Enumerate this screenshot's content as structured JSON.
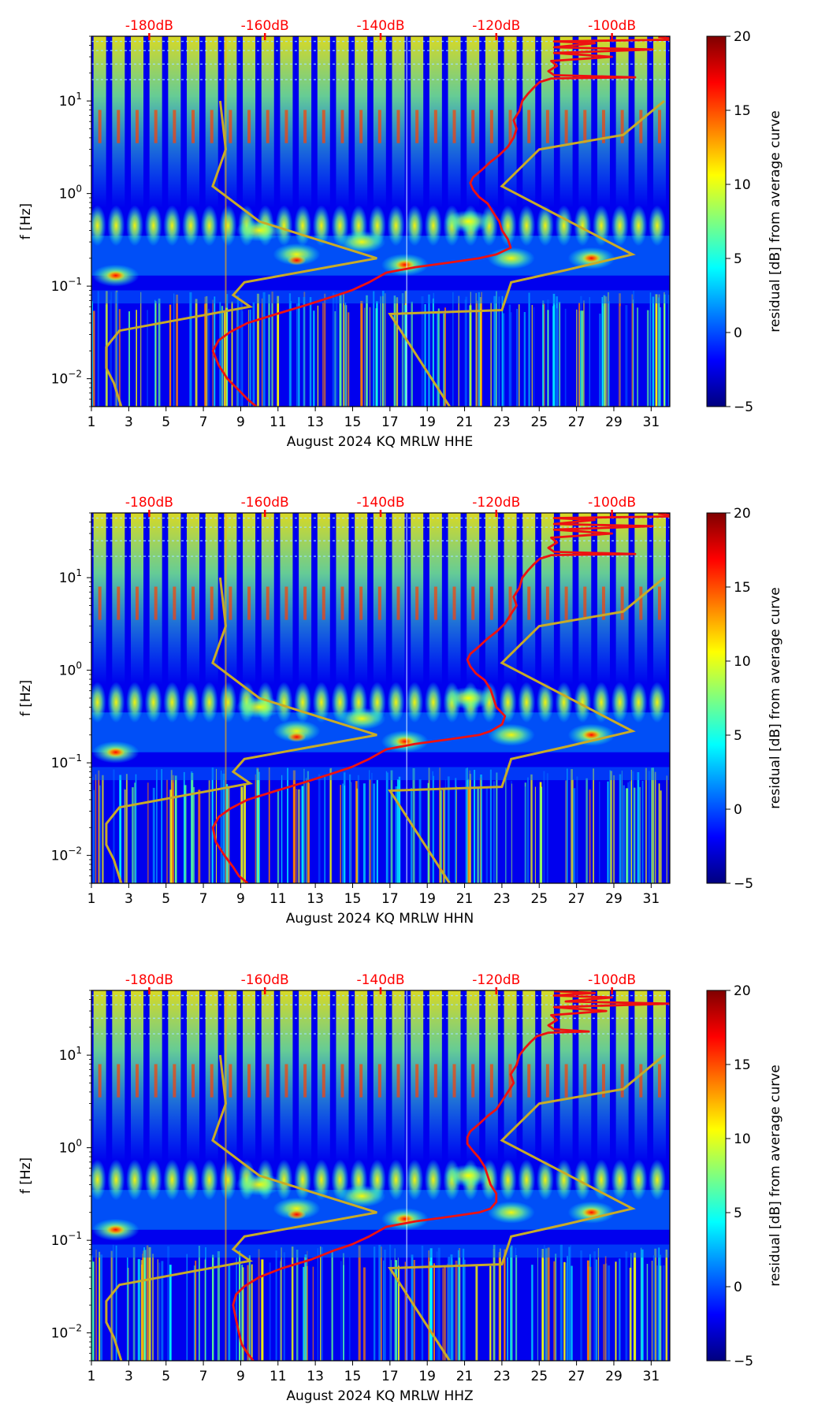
{
  "colormap": [
    "#00007f",
    "#0000ff",
    "#007fff",
    "#00ffff",
    "#7fff7f",
    "#ffff00",
    "#ff7f00",
    "#ff0000",
    "#7f0000"
  ],
  "line_colors": {
    "psd_curve": "#ee1111",
    "noise_model": "#c8ab28",
    "top_labels": "#ff0000"
  },
  "colorbar": {
    "label": "residual [dB] from average curve",
    "range": [
      -5,
      20
    ],
    "ticks": [
      {
        "value": -5,
        "label": "−5"
      },
      {
        "value": 0,
        "label": "0"
      },
      {
        "value": 5,
        "label": "5"
      },
      {
        "value": 10,
        "label": "10"
      },
      {
        "value": 15,
        "label": "15"
      },
      {
        "value": 20,
        "label": "20"
      }
    ]
  },
  "chart_data": [
    {
      "type": "heatmap",
      "title": "",
      "xlabel": "August 2024 KQ MRLW  HHE",
      "ylabel": "f [Hz]",
      "xlim": [
        1,
        32
      ],
      "ylim": [
        0.005,
        50
      ],
      "yscale": "log",
      "xticks": [
        1,
        3,
        5,
        7,
        9,
        11,
        13,
        15,
        17,
        19,
        21,
        23,
        25,
        27,
        29,
        31
      ],
      "yticks": [
        {
          "value": 0.01,
          "base": "10",
          "exp": "−2"
        },
        {
          "value": 0.1,
          "base": "10",
          "exp": "−1"
        },
        {
          "value": 1,
          "base": "10",
          "exp": "0"
        },
        {
          "value": 10,
          "base": "10",
          "exp": "1"
        }
      ],
      "top_axis": {
        "range_db": [
          -190,
          -90
        ],
        "ticks": [
          {
            "value": -180,
            "label": "-180dB"
          },
          {
            "value": -160,
            "label": "-160dB"
          },
          {
            "value": -140,
            "label": "-140dB"
          },
          {
            "value": -120,
            "label": "-120dB"
          },
          {
            "value": -100,
            "label": "-100dB"
          }
        ]
      },
      "psd_curve": [
        {
          "db": -161.5,
          "f": 0.005
        },
        {
          "db": -163,
          "f": 0.006
        },
        {
          "db": -164.5,
          "f": 0.0075
        },
        {
          "db": -166.5,
          "f": 0.01
        },
        {
          "db": -168,
          "f": 0.014
        },
        {
          "db": -169,
          "f": 0.02
        },
        {
          "db": -168,
          "f": 0.026
        },
        {
          "db": -166,
          "f": 0.032
        },
        {
          "db": -163,
          "f": 0.04
        },
        {
          "db": -158,
          "f": 0.05
        },
        {
          "db": -153,
          "f": 0.062
        },
        {
          "db": -148,
          "f": 0.078
        },
        {
          "db": -145,
          "f": 0.09
        },
        {
          "db": -142,
          "f": 0.11
        },
        {
          "db": -139,
          "f": 0.14
        },
        {
          "db": -134,
          "f": 0.16
        },
        {
          "db": -128,
          "f": 0.18
        },
        {
          "db": -123,
          "f": 0.2
        },
        {
          "db": -120,
          "f": 0.22
        },
        {
          "db": -117.5,
          "f": 0.26
        },
        {
          "db": -118,
          "f": 0.32
        },
        {
          "db": -119,
          "f": 0.4
        },
        {
          "db": -119.5,
          "f": 0.5
        },
        {
          "db": -120.5,
          "f": 0.62
        },
        {
          "db": -121.5,
          "f": 0.78
        },
        {
          "db": -123,
          "f": 0.92
        },
        {
          "db": -124,
          "f": 1.1
        },
        {
          "db": -124.5,
          "f": 1.3
        },
        {
          "db": -124,
          "f": 1.5
        },
        {
          "db": -122.5,
          "f": 1.8
        },
        {
          "db": -121,
          "f": 2.2
        },
        {
          "db": -119.5,
          "f": 2.6
        },
        {
          "db": -118,
          "f": 3.2
        },
        {
          "db": -117,
          "f": 4
        },
        {
          "db": -116.5,
          "f": 5
        },
        {
          "db": -117,
          "f": 6.2
        },
        {
          "db": -116,
          "f": 7.8
        },
        {
          "db": -115.5,
          "f": 10
        },
        {
          "db": -114.5,
          "f": 12
        },
        {
          "db": -113.5,
          "f": 14
        },
        {
          "db": -112.5,
          "f": 16
        },
        {
          "db": -110.5,
          "f": 17.5
        },
        {
          "db": -96,
          "f": 18
        },
        {
          "db": -110,
          "f": 19
        },
        {
          "db": -111,
          "f": 21
        },
        {
          "db": -109.5,
          "f": 24
        },
        {
          "db": -110.5,
          "f": 27
        },
        {
          "db": -100,
          "f": 30
        },
        {
          "db": -110,
          "f": 33
        },
        {
          "db": -93,
          "f": 36
        },
        {
          "db": -110,
          "f": 38
        },
        {
          "db": -103,
          "f": 42
        },
        {
          "db": -110,
          "f": 44
        },
        {
          "db": -88,
          "f": 46
        },
        {
          "db": -92,
          "f": 49
        }
      ],
      "nhnm": [
        {
          "day": 20.2,
          "f": 0.005
        },
        {
          "day": 17,
          "f": 0.05
        },
        {
          "day": 23,
          "f": 0.055
        },
        {
          "day": 23.5,
          "f": 0.11
        },
        {
          "day": 26.5,
          "f": 0.15
        },
        {
          "day": 30,
          "f": 0.22
        },
        {
          "day": 23,
          "f": 1.2
        },
        {
          "day": 25,
          "f": 3
        },
        {
          "day": 29.5,
          "f": 4.3
        },
        {
          "day": 31.7,
          "f": 10
        }
      ],
      "nlnm": [
        {
          "day": 2.6,
          "f": 0.005
        },
        {
          "day": 2.2,
          "f": 0.009
        },
        {
          "day": 1.8,
          "f": 0.013
        },
        {
          "day": 1.8,
          "f": 0.022
        },
        {
          "day": 2.5,
          "f": 0.033
        },
        {
          "day": 9.5,
          "f": 0.06
        },
        {
          "day": 8.6,
          "f": 0.08
        },
        {
          "day": 9.2,
          "f": 0.11
        },
        {
          "day": 16.3,
          "f": 0.2
        },
        {
          "day": 10,
          "f": 0.5
        },
        {
          "day": 7.5,
          "f": 1.2
        },
        {
          "day": 8.2,
          "f": 3
        },
        {
          "day": 7.9,
          "f": 10
        }
      ]
    },
    {
      "type": "heatmap",
      "title": "",
      "xlabel": "August 2024 KQ MRLW  HHN",
      "ylabel": "f [Hz]",
      "xlim": [
        1,
        32
      ],
      "ylim": [
        0.005,
        50
      ],
      "yscale": "log",
      "xticks": [
        1,
        3,
        5,
        7,
        9,
        11,
        13,
        15,
        17,
        19,
        21,
        23,
        25,
        27,
        29,
        31
      ],
      "yticks": [
        {
          "value": 0.01,
          "base": "10",
          "exp": "−2"
        },
        {
          "value": 0.1,
          "base": "10",
          "exp": "−1"
        },
        {
          "value": 1,
          "base": "10",
          "exp": "0"
        },
        {
          "value": 10,
          "base": "10",
          "exp": "1"
        }
      ],
      "top_axis": {
        "range_db": [
          -190,
          -90
        ],
        "ticks": [
          {
            "value": -180,
            "label": "-180dB"
          },
          {
            "value": -160,
            "label": "-160dB"
          },
          {
            "value": -140,
            "label": "-140dB"
          },
          {
            "value": -120,
            "label": "-120dB"
          },
          {
            "value": -100,
            "label": "-100dB"
          }
        ]
      },
      "psd_curve": [
        {
          "db": -163,
          "f": 0.005
        },
        {
          "db": -164.5,
          "f": 0.006
        },
        {
          "db": -165.5,
          "f": 0.0075
        },
        {
          "db": -167,
          "f": 0.01
        },
        {
          "db": -168.5,
          "f": 0.014
        },
        {
          "db": -169,
          "f": 0.02
        },
        {
          "db": -168,
          "f": 0.026
        },
        {
          "db": -166,
          "f": 0.032
        },
        {
          "db": -163,
          "f": 0.04
        },
        {
          "db": -158,
          "f": 0.05
        },
        {
          "db": -153,
          "f": 0.062
        },
        {
          "db": -148,
          "f": 0.078
        },
        {
          "db": -145,
          "f": 0.09
        },
        {
          "db": -142,
          "f": 0.11
        },
        {
          "db": -139,
          "f": 0.14
        },
        {
          "db": -134,
          "f": 0.16
        },
        {
          "db": -128,
          "f": 0.18
        },
        {
          "db": -123,
          "f": 0.2
        },
        {
          "db": -121,
          "f": 0.22
        },
        {
          "db": -119,
          "f": 0.26
        },
        {
          "db": -118.5,
          "f": 0.32
        },
        {
          "db": -120,
          "f": 0.4
        },
        {
          "db": -120.5,
          "f": 0.5
        },
        {
          "db": -121,
          "f": 0.62
        },
        {
          "db": -122,
          "f": 0.78
        },
        {
          "db": -123.5,
          "f": 0.92
        },
        {
          "db": -124.5,
          "f": 1.1
        },
        {
          "db": -125,
          "f": 1.3
        },
        {
          "db": -124.5,
          "f": 1.5
        },
        {
          "db": -123,
          "f": 1.8
        },
        {
          "db": -121.5,
          "f": 2.2
        },
        {
          "db": -120,
          "f": 2.6
        },
        {
          "db": -118.5,
          "f": 3.2
        },
        {
          "db": -117.5,
          "f": 4
        },
        {
          "db": -116.5,
          "f": 5
        },
        {
          "db": -117,
          "f": 6.2
        },
        {
          "db": -116,
          "f": 7.8
        },
        {
          "db": -115.5,
          "f": 10
        },
        {
          "db": -114.5,
          "f": 12
        },
        {
          "db": -113.5,
          "f": 14
        },
        {
          "db": -112.5,
          "f": 16
        },
        {
          "db": -110.5,
          "f": 17.5
        },
        {
          "db": -96,
          "f": 18
        },
        {
          "db": -110,
          "f": 19
        },
        {
          "db": -111,
          "f": 21
        },
        {
          "db": -109.5,
          "f": 24
        },
        {
          "db": -110.5,
          "f": 27
        },
        {
          "db": -100,
          "f": 30
        },
        {
          "db": -110,
          "f": 33
        },
        {
          "db": -93,
          "f": 36
        },
        {
          "db": -110,
          "f": 38
        },
        {
          "db": -103,
          "f": 42
        },
        {
          "db": -110,
          "f": 44
        },
        {
          "db": -88,
          "f": 46
        },
        {
          "db": -92,
          "f": 49
        }
      ],
      "nhnm": [
        {
          "day": 20.2,
          "f": 0.005
        },
        {
          "day": 17,
          "f": 0.05
        },
        {
          "day": 23,
          "f": 0.055
        },
        {
          "day": 23.5,
          "f": 0.11
        },
        {
          "day": 26.5,
          "f": 0.15
        },
        {
          "day": 30,
          "f": 0.22
        },
        {
          "day": 23,
          "f": 1.2
        },
        {
          "day": 25,
          "f": 3
        },
        {
          "day": 29.5,
          "f": 4.3
        },
        {
          "day": 31.7,
          "f": 10
        }
      ],
      "nlnm": [
        {
          "day": 2.6,
          "f": 0.005
        },
        {
          "day": 2.2,
          "f": 0.009
        },
        {
          "day": 1.8,
          "f": 0.013
        },
        {
          "day": 1.8,
          "f": 0.022
        },
        {
          "day": 2.5,
          "f": 0.033
        },
        {
          "day": 9.5,
          "f": 0.06
        },
        {
          "day": 8.6,
          "f": 0.08
        },
        {
          "day": 9.2,
          "f": 0.11
        },
        {
          "day": 16.3,
          "f": 0.2
        },
        {
          "day": 10,
          "f": 0.5
        },
        {
          "day": 7.5,
          "f": 1.2
        },
        {
          "day": 8.2,
          "f": 3
        },
        {
          "day": 7.9,
          "f": 10
        }
      ]
    },
    {
      "type": "heatmap",
      "title": "",
      "xlabel": "August 2024 KQ MRLW  HHZ",
      "ylabel": "f [Hz]",
      "xlim": [
        1,
        32
      ],
      "ylim": [
        0.005,
        50
      ],
      "yscale": "log",
      "xticks": [
        1,
        3,
        5,
        7,
        9,
        11,
        13,
        15,
        17,
        19,
        21,
        23,
        25,
        27,
        29,
        31
      ],
      "yticks": [
        {
          "value": 0.01,
          "base": "10",
          "exp": "−2"
        },
        {
          "value": 0.1,
          "base": "10",
          "exp": "−1"
        },
        {
          "value": 1,
          "base": "10",
          "exp": "0"
        },
        {
          "value": 10,
          "base": "10",
          "exp": "1"
        }
      ],
      "top_axis": {
        "range_db": [
          -190,
          -90
        ],
        "ticks": [
          {
            "value": -180,
            "label": "-180dB"
          },
          {
            "value": -160,
            "label": "-160dB"
          },
          {
            "value": -140,
            "label": "-140dB"
          },
          {
            "value": -120,
            "label": "-120dB"
          },
          {
            "value": -100,
            "label": "-100dB"
          }
        ]
      },
      "psd_curve": [
        {
          "db": -162,
          "f": 0.005
        },
        {
          "db": -163,
          "f": 0.006
        },
        {
          "db": -164,
          "f": 0.0075
        },
        {
          "db": -164.5,
          "f": 0.01
        },
        {
          "db": -165,
          "f": 0.014
        },
        {
          "db": -165.5,
          "f": 0.02
        },
        {
          "db": -165,
          "f": 0.026
        },
        {
          "db": -163.5,
          "f": 0.032
        },
        {
          "db": -161,
          "f": 0.04
        },
        {
          "db": -157,
          "f": 0.05
        },
        {
          "db": -152,
          "f": 0.062
        },
        {
          "db": -148,
          "f": 0.078
        },
        {
          "db": -145,
          "f": 0.09
        },
        {
          "db": -142,
          "f": 0.11
        },
        {
          "db": -139,
          "f": 0.14
        },
        {
          "db": -134,
          "f": 0.16
        },
        {
          "db": -128,
          "f": 0.18
        },
        {
          "db": -123,
          "f": 0.2
        },
        {
          "db": -121,
          "f": 0.22
        },
        {
          "db": -120,
          "f": 0.26
        },
        {
          "db": -120,
          "f": 0.32
        },
        {
          "db": -121,
          "f": 0.4
        },
        {
          "db": -121.5,
          "f": 0.5
        },
        {
          "db": -122,
          "f": 0.62
        },
        {
          "db": -123,
          "f": 0.78
        },
        {
          "db": -124,
          "f": 0.92
        },
        {
          "db": -125,
          "f": 1.1
        },
        {
          "db": -125,
          "f": 1.3
        },
        {
          "db": -124.5,
          "f": 1.5
        },
        {
          "db": -123,
          "f": 1.8
        },
        {
          "db": -121.5,
          "f": 2.2
        },
        {
          "db": -120,
          "f": 2.6
        },
        {
          "db": -119,
          "f": 3.2
        },
        {
          "db": -118,
          "f": 4
        },
        {
          "db": -117,
          "f": 5
        },
        {
          "db": -117.5,
          "f": 6.2
        },
        {
          "db": -116.5,
          "f": 7.8
        },
        {
          "db": -116,
          "f": 10
        },
        {
          "db": -115,
          "f": 12
        },
        {
          "db": -114,
          "f": 14
        },
        {
          "db": -113,
          "f": 16
        },
        {
          "db": -111,
          "f": 17.5
        },
        {
          "db": -104,
          "f": 18
        },
        {
          "db": -110,
          "f": 19
        },
        {
          "db": -111,
          "f": 21
        },
        {
          "db": -109.5,
          "f": 24
        },
        {
          "db": -110.5,
          "f": 27
        },
        {
          "db": -101,
          "f": 30
        },
        {
          "db": -110,
          "f": 33
        },
        {
          "db": -90,
          "f": 36
        },
        {
          "db": -108,
          "f": 38
        },
        {
          "db": -100,
          "f": 42
        },
        {
          "db": -110,
          "f": 44
        },
        {
          "db": -103,
          "f": 47
        },
        {
          "db": -110,
          "f": 49
        }
      ],
      "nhnm": [
        {
          "day": 20.2,
          "f": 0.005
        },
        {
          "day": 17,
          "f": 0.05
        },
        {
          "day": 23,
          "f": 0.055
        },
        {
          "day": 23.5,
          "f": 0.11
        },
        {
          "day": 26.5,
          "f": 0.15
        },
        {
          "day": 30,
          "f": 0.22
        },
        {
          "day": 23,
          "f": 1.2
        },
        {
          "day": 25,
          "f": 3
        },
        {
          "day": 29.5,
          "f": 4.3
        },
        {
          "day": 31.7,
          "f": 10
        }
      ],
      "nlnm": [
        {
          "day": 2.6,
          "f": 0.005
        },
        {
          "day": 2.2,
          "f": 0.009
        },
        {
          "day": 1.8,
          "f": 0.013
        },
        {
          "day": 1.8,
          "f": 0.022
        },
        {
          "day": 2.5,
          "f": 0.033
        },
        {
          "day": 9.5,
          "f": 0.06
        },
        {
          "day": 8.6,
          "f": 0.08
        },
        {
          "day": 9.2,
          "f": 0.11
        },
        {
          "day": 16.3,
          "f": 0.2
        },
        {
          "day": 10,
          "f": 0.5
        },
        {
          "day": 7.5,
          "f": 1.2
        },
        {
          "day": 8.2,
          "f": 3
        },
        {
          "day": 7.9,
          "f": 10
        }
      ]
    }
  ]
}
